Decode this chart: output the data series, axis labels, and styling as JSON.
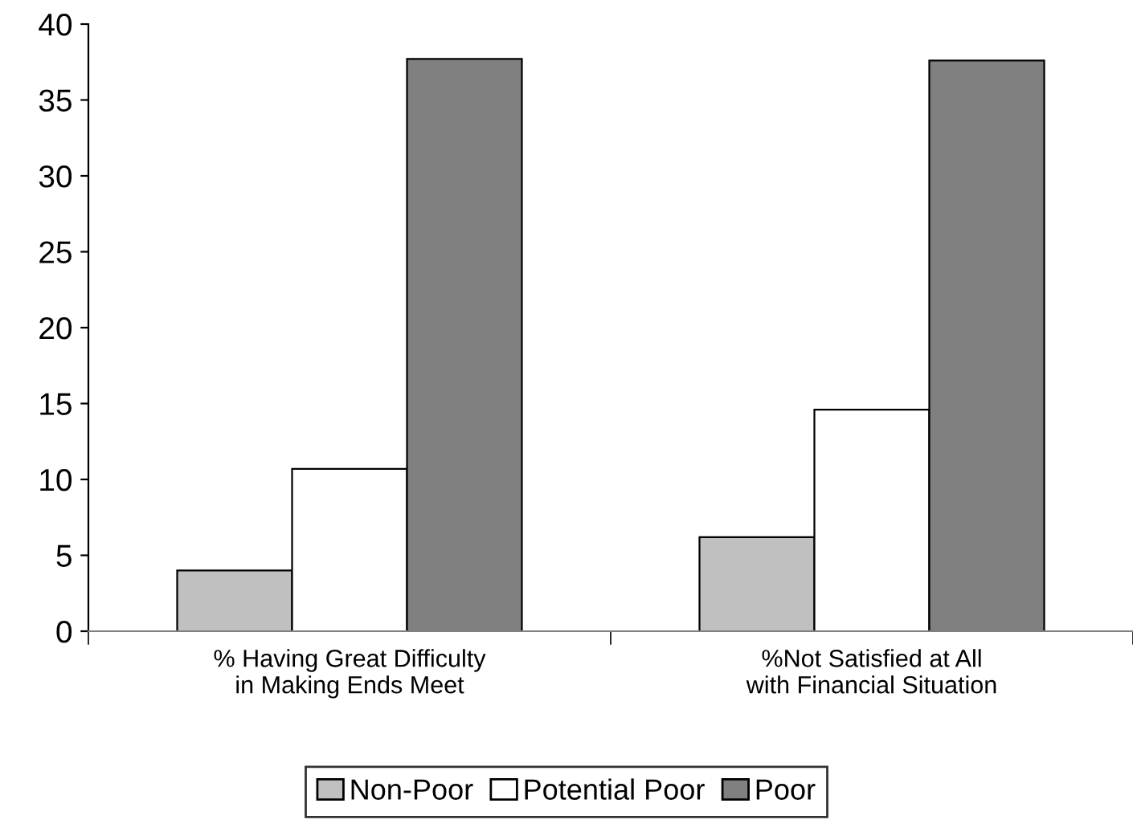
{
  "chart_data": {
    "type": "bar",
    "categories": [
      "% Having Great Difficulty in Making Ends Meet",
      "%Not Satisfied at All with Financial Situation"
    ],
    "series": [
      {
        "name": "Non-Poor",
        "color": "#c0c0c0",
        "values": [
          4.0,
          6.2
        ]
      },
      {
        "name": "Potential Poor",
        "color": "#ffffff",
        "values": [
          10.7,
          14.6
        ]
      },
      {
        "name": "Poor",
        "color": "#808080",
        "values": [
          37.7,
          37.6
        ]
      }
    ],
    "ylim": [
      0,
      40
    ],
    "yticks": [
      0,
      5,
      10,
      15,
      20,
      25,
      30,
      35,
      40
    ],
    "grid": false,
    "legend": "bottom"
  }
}
